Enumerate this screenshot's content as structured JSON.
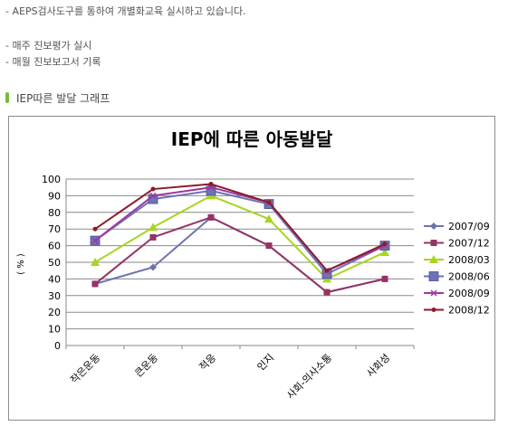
{
  "intro": {
    "line1": "- AEPS검사도구를 통하여 개별화교육 실시하고 있습니다.",
    "line2": "- 매주 진보평가 실시",
    "line3": "- 매월 진보보고서 기록"
  },
  "section": {
    "title": "IEP따른 발달 그래프",
    "bar_color": "#7bb83a"
  },
  "chart_data": {
    "type": "line",
    "title": "IEP에 따른 아동발달",
    "ylabel": "( % )",
    "xlabel": "",
    "ylim": [
      0,
      100
    ],
    "yticks": [
      "0",
      "10",
      "20",
      "30",
      "40",
      "50",
      "60",
      "70",
      "80",
      "90",
      "100"
    ],
    "grid": true,
    "legend": "right",
    "categories": [
      "작은운동",
      "큰운동",
      "적응",
      "인지",
      "사회-의사소통",
      "사회성"
    ],
    "series": [
      {
        "name": "2007/09",
        "color": "#6b74b0",
        "marker": "diamond",
        "values": [
          37,
          47,
          77,
          60,
          32,
          40
        ]
      },
      {
        "name": "2007/12",
        "color": "#943464",
        "marker": "square",
        "values": [
          37,
          65,
          77,
          60,
          32,
          40
        ]
      },
      {
        "name": "2008/03",
        "color": "#a8d520",
        "marker": "triangle",
        "values": [
          50,
          71,
          90,
          76,
          40,
          56
        ]
      },
      {
        "name": "2008/06",
        "color": "#6e72b8",
        "marker": "bigsquare",
        "values": [
          63,
          88,
          93,
          85,
          43,
          60
        ]
      },
      {
        "name": "2008/09",
        "color": "#9a3aa0",
        "marker": "x",
        "values": [
          63,
          90,
          95,
          86,
          45,
          60
        ]
      },
      {
        "name": "2008/12",
        "color": "#8c1c2a",
        "marker": "dot",
        "values": [
          70,
          94,
          97,
          86,
          45,
          61
        ]
      }
    ]
  }
}
